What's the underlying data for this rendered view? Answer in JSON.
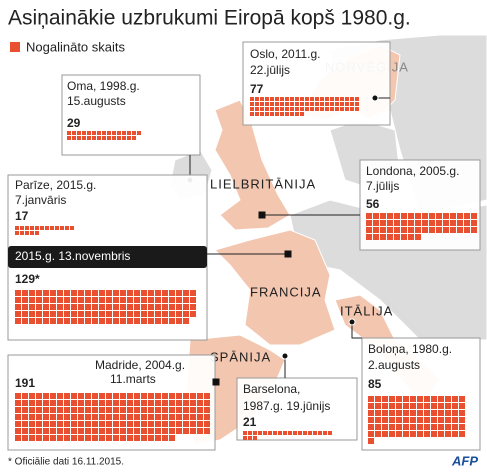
{
  "title": "Asiņainākie uzbrukumi Eiropā kopš 1980.g.",
  "legend": "Nogalināto skaits",
  "legend_color": "#e8502f",
  "countries": [
    {
      "label": "NORVĒĢIJA"
    },
    {
      "label": "LIELBRITĀNIJA"
    },
    {
      "label": "FRANCIJA"
    },
    {
      "label": "ITĀLIJA"
    },
    {
      "label": "SPĀNIJA"
    }
  ],
  "attacks": [
    {
      "place": "Oslo, 2011.g.",
      "date": "22.jūlijs",
      "killed": 77
    },
    {
      "place": "Oma, 1998.g.",
      "date": "15.augusts",
      "killed": 29
    },
    {
      "place": "Londona, 2005.g.",
      "date": "7.jūlijs",
      "killed": 56
    },
    {
      "place": "Parīze, 2015.g.",
      "date": "7.janvāris",
      "killed": 17
    },
    {
      "date": "2015.g. 13.novembris",
      "killed": 129,
      "killed_label": "129*"
    },
    {
      "place": "Madride, 2004.g.",
      "date": "11.marts",
      "killed": 191
    },
    {
      "place": "Barselona,",
      "date": "1987.g. 19.jūnijs",
      "killed": 21
    },
    {
      "place": "Boloņa, 1980.g.",
      "date": "2.augusts",
      "killed": 85
    }
  ],
  "footnote": "* Oficiālie dati 16.11.2015.",
  "credit": "AFP"
}
